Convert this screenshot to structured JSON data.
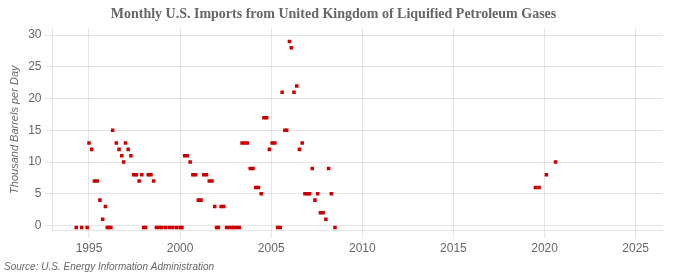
{
  "chart_data": {
    "type": "scatter",
    "title": "Monthly U.S. Imports from United Kingdom of Liquified Petroleum Gases",
    "ylabel": "Thousand Barrels per Day",
    "annotations": [
      "Source: U.S. Energy Information Administration"
    ],
    "x": [
      1994.3,
      1994.6,
      1994.9,
      1995.0,
      1995.15,
      1995.3,
      1995.45,
      1995.6,
      1995.75,
      1995.9,
      1996.0,
      1996.1,
      1996.2,
      1996.3,
      1996.5,
      1996.65,
      1996.8,
      1996.9,
      1997.0,
      1997.15,
      1997.3,
      1997.45,
      1997.6,
      1997.75,
      1997.9,
      1998.0,
      1998.1,
      1998.25,
      1998.4,
      1998.55,
      1998.7,
      1998.85,
      1999.0,
      1999.2,
      1999.4,
      1999.6,
      1999.8,
      2000.0,
      2000.1,
      2000.25,
      2000.4,
      2000.55,
      2000.7,
      2000.85,
      2001.0,
      2001.15,
      2001.3,
      2001.45,
      2001.6,
      2001.75,
      2001.9,
      2002.0,
      2002.1,
      2002.25,
      2002.4,
      2002.55,
      2002.7,
      2002.85,
      2002.95,
      2003.1,
      2003.25,
      2003.4,
      2003.55,
      2003.7,
      2003.85,
      2004.0,
      2004.15,
      2004.3,
      2004.45,
      2004.6,
      2004.75,
      2004.9,
      2005.05,
      2005.2,
      2005.35,
      2005.5,
      2005.6,
      2005.75,
      2005.85,
      2006.0,
      2006.1,
      2006.25,
      2006.4,
      2006.55,
      2006.7,
      2006.85,
      2007.0,
      2007.1,
      2007.25,
      2007.4,
      2007.55,
      2007.7,
      2007.85,
      2008.0,
      2008.15,
      2008.3,
      2008.5,
      2019.5,
      2019.7,
      2020.1,
      2020.6
    ],
    "values": [
      -0.3,
      -0.3,
      -0.3,
      13,
      12,
      7,
      7,
      4,
      1,
      3,
      -0.3,
      -0.3,
      -0.3,
      15,
      13,
      12,
      11,
      10,
      13,
      12,
      11,
      8,
      8,
      7,
      8,
      -0.3,
      -0.3,
      8,
      8,
      7,
      -0.3,
      -0.3,
      -0.3,
      -0.3,
      -0.3,
      -0.3,
      -0.3,
      -0.3,
      -0.3,
      11,
      11,
      10,
      8,
      8,
      4,
      4,
      8,
      8,
      7,
      7,
      3,
      -0.3,
      -0.3,
      3,
      3,
      -0.3,
      -0.3,
      -0.3,
      -0.3,
      -0.3,
      -0.3,
      13,
      13,
      13,
      9,
      9,
      6,
      6,
      5,
      17,
      17,
      12,
      13,
      13,
      -0.3,
      -0.3,
      21,
      15,
      15,
      29,
      28,
      21,
      22,
      12,
      13,
      5,
      5,
      5,
      9,
      4,
      5,
      2,
      2,
      1,
      9,
      5,
      -0.3,
      6,
      6,
      8,
      10
    ],
    "color": "#cc0000",
    "marker": "square",
    "xlim": [
      1993.0,
      2026.5
    ],
    "ylim": [
      -0.8,
      31
    ],
    "xticks": [
      1995,
      2000,
      2005,
      2010,
      2015,
      2020,
      2025
    ],
    "yticks": [
      0,
      5,
      10,
      15,
      20,
      25,
      30
    ],
    "grid": true
  }
}
